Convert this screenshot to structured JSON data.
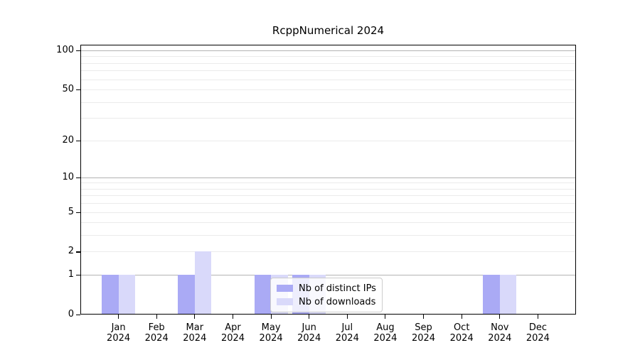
{
  "title": "RcppNumerical 2024",
  "colors": {
    "distinct_ips": "#aaaaf5",
    "downloads": "#d9d9fa",
    "grid_major": "#b3b3b3",
    "grid_minor": "#ebebeb",
    "spine": "#000000",
    "legend_border": "#cccccc",
    "background": "#ffffff"
  },
  "legend": {
    "entries": [
      {
        "label": "Nb of distinct IPs",
        "color_key": "distinct_ips"
      },
      {
        "label": "Nb of downloads",
        "color_key": "downloads"
      }
    ]
  },
  "chart_data": {
    "type": "bar",
    "title": "RcppNumerical 2024",
    "scale": "log1p",
    "categories": [
      "Jan",
      "Feb",
      "Mar",
      "Apr",
      "May",
      "Jun",
      "Jul",
      "Aug",
      "Sep",
      "Oct",
      "Nov",
      "Dec"
    ],
    "category_year": "2024",
    "series": [
      {
        "name": "Nb of distinct IPs",
        "values": [
          1,
          0,
          1,
          0,
          1,
          1,
          0,
          0,
          0,
          0,
          1,
          0
        ]
      },
      {
        "name": "Nb of downloads",
        "values": [
          1,
          0,
          2,
          0,
          1,
          1,
          0,
          0,
          0,
          0,
          1,
          0
        ]
      }
    ],
    "y_tick_labels": [
      "0",
      "1",
      "2",
      "5",
      "10",
      "20",
      "50",
      "100"
    ],
    "y_ticks": [
      0,
      1,
      2,
      5,
      10,
      20,
      50,
      100
    ],
    "y_major_gridlines": [
      1,
      10,
      100
    ],
    "y_minor_gridlines": [
      2,
      3,
      4,
      5,
      6,
      7,
      8,
      9,
      20,
      30,
      40,
      50,
      60,
      70,
      80,
      90
    ],
    "ylim": [
      0,
      110
    ],
    "grid": "on",
    "legend_position": "inside-bottom-center"
  }
}
